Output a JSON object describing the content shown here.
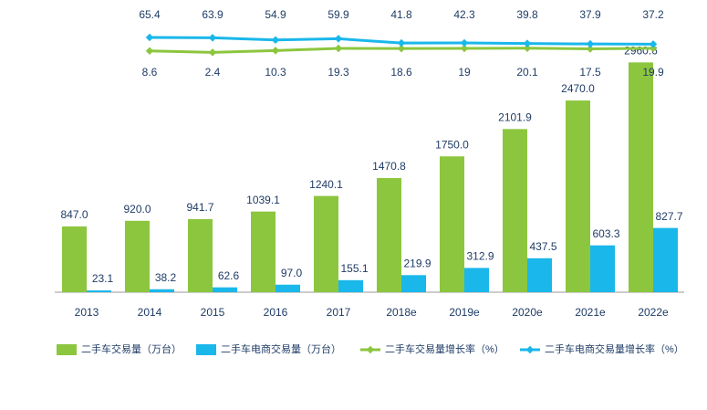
{
  "chart_data": {
    "type": "bar",
    "categories": [
      "2013",
      "2014",
      "2015",
      "2016",
      "2017",
      "2018e",
      "2019e",
      "2020e",
      "2021e",
      "2022e"
    ],
    "ylim": [
      0,
      3000
    ],
    "y2lim": [
      0,
      100
    ],
    "legend": "bottom",
    "series": [
      {
        "name": "二手车交易量（万台）",
        "color": "#8cc63f",
        "type": "bar",
        "values": [
          847.0,
          920.0,
          941.7,
          1039.1,
          1240.1,
          1470.8,
          1750.0,
          2101.9,
          2470.0,
          2960.6
        ],
        "value_labels": [
          "847.0",
          "920.0",
          "941.7",
          "1039.1",
          "1240.1",
          "1470.8",
          "1750.0",
          "2101.9",
          "2470.0",
          "2960.6"
        ]
      },
      {
        "name": "二手车电商交易量（万台）",
        "color": "#1ab7ea",
        "type": "bar",
        "values": [
          23.1,
          38.2,
          62.6,
          97.0,
          155.1,
          219.9,
          312.9,
          437.5,
          603.3,
          827.7
        ],
        "value_labels": [
          "23.1",
          "38.2",
          "62.6",
          "97.0",
          "155.1",
          "219.9",
          "312.9",
          "437.5",
          "603.3",
          "827.7"
        ]
      },
      {
        "name": "二手车交易量增长率（%）",
        "color": "#8cc63f",
        "type": "line",
        "axis": "y2",
        "values": [
          null,
          8.6,
          2.4,
          10.3,
          19.3,
          18.6,
          19.0,
          20.1,
          17.5,
          19.9
        ]
      },
      {
        "name": "二手车电商交易量增长率（%）",
        "color": "#1ab7ea",
        "type": "line",
        "axis": "y2",
        "values": [
          null,
          65.4,
          63.9,
          54.9,
          59.9,
          41.8,
          42.3,
          39.8,
          37.9,
          37.2
        ]
      }
    ]
  }
}
